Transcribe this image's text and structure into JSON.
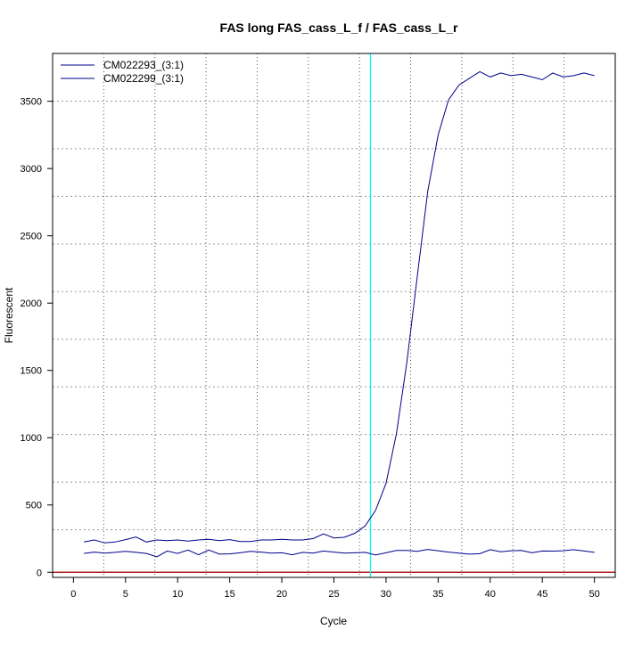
{
  "chart_data": {
    "type": "line",
    "title": "FAS long FAS_cass_L_f / FAS_cass_L_r",
    "xlabel": "Cycle",
    "ylabel": "Fluorescent",
    "xlim": [
      -2,
      52
    ],
    "ylim": [
      -38,
      3855
    ],
    "x_ticks": [
      0,
      5,
      10,
      15,
      20,
      25,
      30,
      35,
      40,
      45,
      50
    ],
    "y_ticks": [
      0,
      500,
      1000,
      1500,
      2000,
      2500,
      3000,
      3500
    ],
    "grid": true,
    "legend_position": "top-left",
    "x": [
      1,
      2,
      3,
      4,
      5,
      6,
      7,
      8,
      9,
      10,
      11,
      12,
      13,
      14,
      15,
      16,
      17,
      18,
      19,
      20,
      21,
      22,
      23,
      24,
      25,
      26,
      27,
      28,
      29,
      30,
      31,
      32,
      33,
      34,
      35,
      36,
      37,
      38,
      39,
      40,
      41,
      42,
      43,
      44,
      45,
      46,
      47,
      48,
      49,
      50
    ],
    "series": [
      {
        "name": "CM022293_(3:1)",
        "color": "#00008b",
        "values": [
          225,
          240,
          218,
          225,
          243,
          262,
          225,
          240,
          235,
          240,
          232,
          240,
          245,
          235,
          243,
          228,
          228,
          240,
          240,
          245,
          240,
          240,
          250,
          285,
          255,
          260,
          290,
          345,
          460,
          660,
          1030,
          1560,
          2200,
          2830,
          3250,
          3510,
          3620,
          3670,
          3720,
          3680,
          3710,
          3690,
          3700,
          3680,
          3660,
          3710,
          3680,
          3690,
          3710,
          3690
        ]
      },
      {
        "name": "CM022299_(3:1)",
        "color": "#00008b",
        "values": [
          140,
          150,
          143,
          148,
          155,
          148,
          140,
          115,
          158,
          140,
          165,
          130,
          165,
          135,
          137,
          145,
          155,
          150,
          142,
          145,
          130,
          148,
          142,
          158,
          150,
          142,
          145,
          148,
          128,
          145,
          162,
          162,
          155,
          170,
          160,
          150,
          143,
          135,
          138,
          168,
          152,
          160,
          162,
          145,
          158,
          157,
          160,
          168,
          158,
          148
        ]
      }
    ],
    "threshold": {
      "value": 0,
      "color": "#b22222"
    },
    "ct_marker": {
      "cycle": 28.5,
      "color": "#00ffff"
    }
  }
}
